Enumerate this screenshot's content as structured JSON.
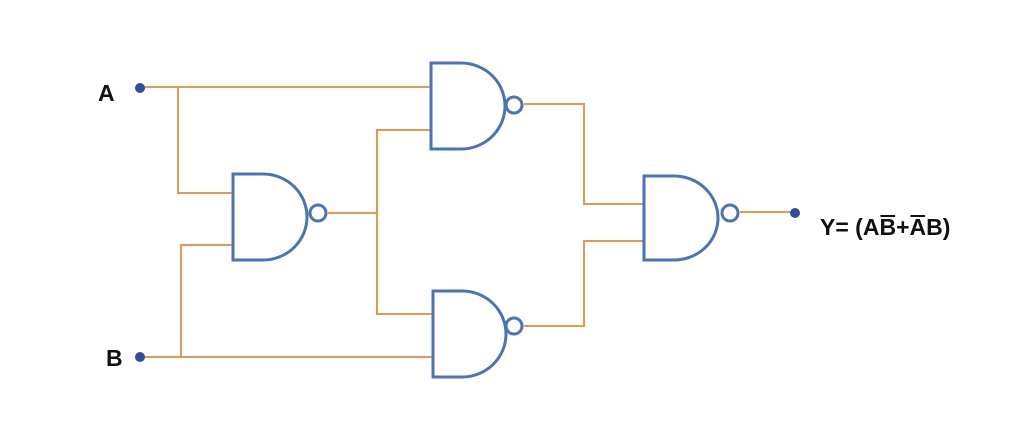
{
  "inputs": {
    "a_label": "A",
    "b_label": "B"
  },
  "output": {
    "prefix": "Y= (A",
    "b_bar": "B",
    "plus": "+",
    "a_bar": "A",
    "b": "B",
    "suffix": ")"
  },
  "gates": [
    {
      "type": "NAND",
      "name": "nand-gate-1"
    },
    {
      "type": "NAND",
      "name": "nand-gate-2"
    },
    {
      "type": "NAND",
      "name": "nand-gate-3"
    },
    {
      "type": "NAND",
      "name": "nand-gate-4"
    }
  ],
  "colors": {
    "wire": "#e39a4c",
    "gate_outline": "#4a73b8",
    "terminal": "#2f4f9a"
  }
}
